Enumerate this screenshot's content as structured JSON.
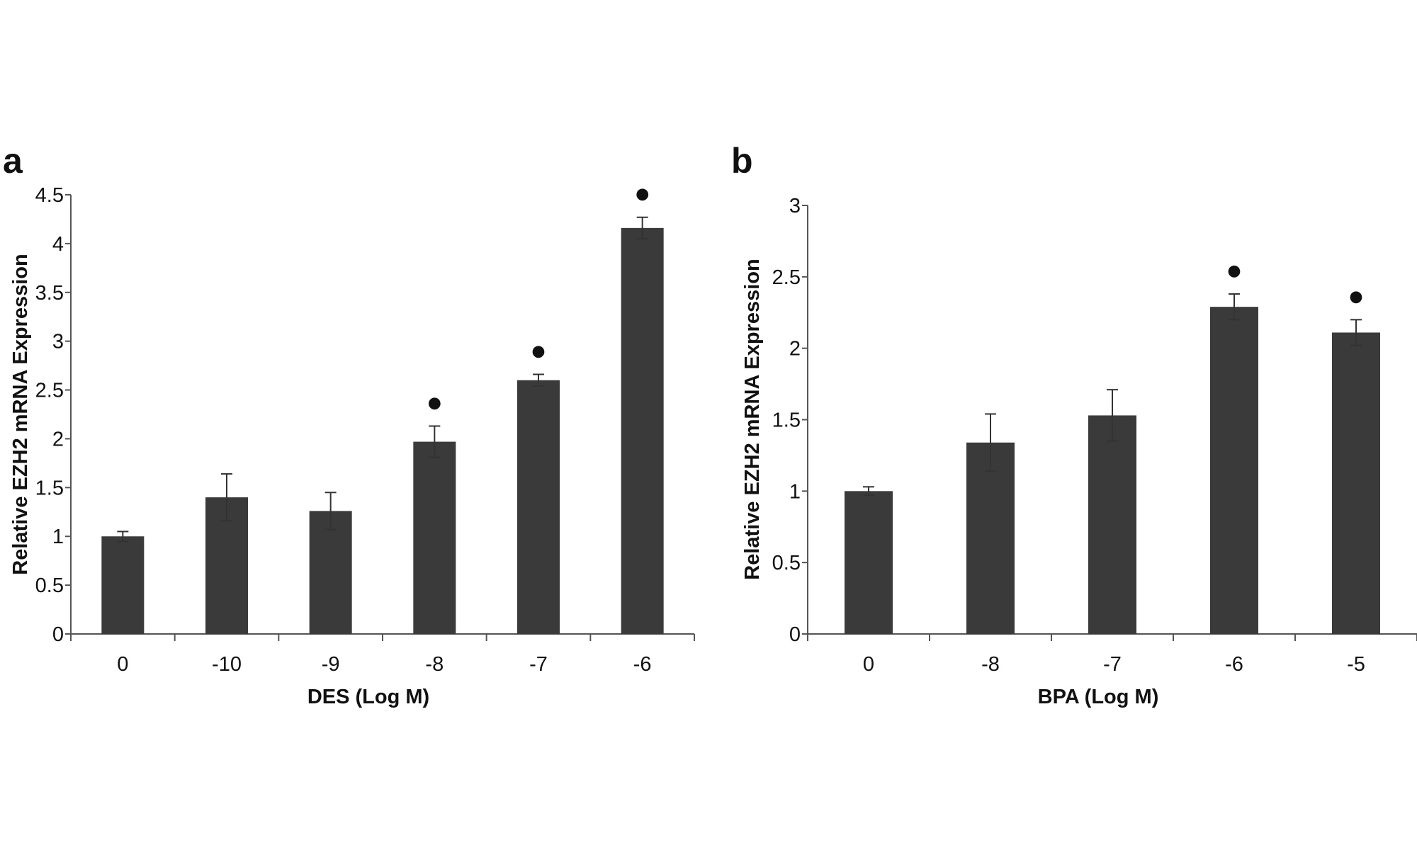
{
  "chart_data": [
    {
      "type": "bar",
      "panel_label": "a",
      "categories": [
        "0",
        "-10",
        "-9",
        "-8",
        "-7",
        "-6"
      ],
      "values": [
        1.0,
        1.4,
        1.26,
        1.97,
        2.6,
        4.16
      ],
      "errors": [
        0.05,
        0.24,
        0.19,
        0.16,
        0.06,
        0.11
      ],
      "significant": [
        false,
        false,
        false,
        true,
        true,
        true
      ],
      "significance_marker": "●",
      "xlabel": "DES (Log M)",
      "ylabel": "Relative EZH2 mRNA Expression",
      "ylim": [
        0,
        4.5
      ],
      "yticks": [
        "0",
        "0.5",
        "1",
        "1.5",
        "2",
        "2.5",
        "3",
        "3.5",
        "4",
        "4.5"
      ],
      "grid": false,
      "bar_color": "#3a3a3a"
    },
    {
      "type": "bar",
      "panel_label": "b",
      "categories": [
        "0",
        "-8",
        "-7",
        "-6",
        "-5"
      ],
      "values": [
        1.0,
        1.34,
        1.53,
        2.29,
        2.11
      ],
      "errors": [
        0.03,
        0.2,
        0.18,
        0.09,
        0.09
      ],
      "significant": [
        false,
        false,
        false,
        true,
        true
      ],
      "significance_marker": "●",
      "xlabel": "BPA (Log M)",
      "ylabel": "Relative EZH2 mRNA Expression",
      "ylim": [
        0,
        3
      ],
      "yticks": [
        "0",
        "0.5",
        "1",
        "1.5",
        "2",
        "2.5",
        "3"
      ],
      "grid": false,
      "bar_color": "#3a3a3a"
    }
  ]
}
